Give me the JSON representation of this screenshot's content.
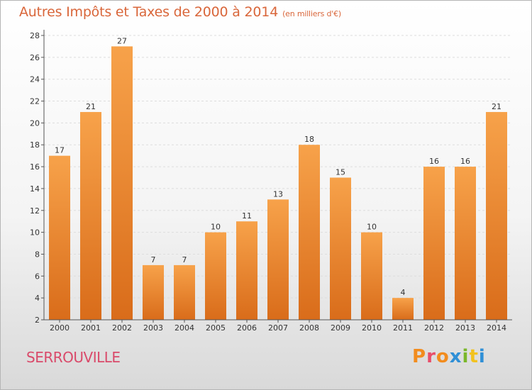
{
  "header": {
    "title": "Autres Impôts et Taxes de 2000 à 2014",
    "unit": "(en milliers d'€)"
  },
  "footer": {
    "commune": "SERROUVILLE",
    "logo": "Proxiti",
    "logo_colors": [
      "#f28c1e",
      "#e84e6a",
      "#f28c1e",
      "#2f8fd6",
      "#7ab729",
      "#f2c21e",
      "#2f8fd6"
    ]
  },
  "chart_data": {
    "type": "bar",
    "categories": [
      "2000",
      "2001",
      "2002",
      "2003",
      "2004",
      "2005",
      "2006",
      "2007",
      "2008",
      "2009",
      "2010",
      "2011",
      "2012",
      "2013",
      "2014"
    ],
    "values": [
      17,
      21,
      27,
      7,
      7,
      10,
      11,
      13,
      18,
      15,
      10,
      4,
      16,
      16,
      21
    ],
    "ylim": [
      2,
      28
    ],
    "yticks": [
      2,
      4,
      6,
      8,
      10,
      12,
      14,
      16,
      18,
      20,
      22,
      24,
      26,
      28
    ],
    "grid": true,
    "bar_color_top": "#f7a24a",
    "bar_color_bottom": "#d96c1a"
  }
}
